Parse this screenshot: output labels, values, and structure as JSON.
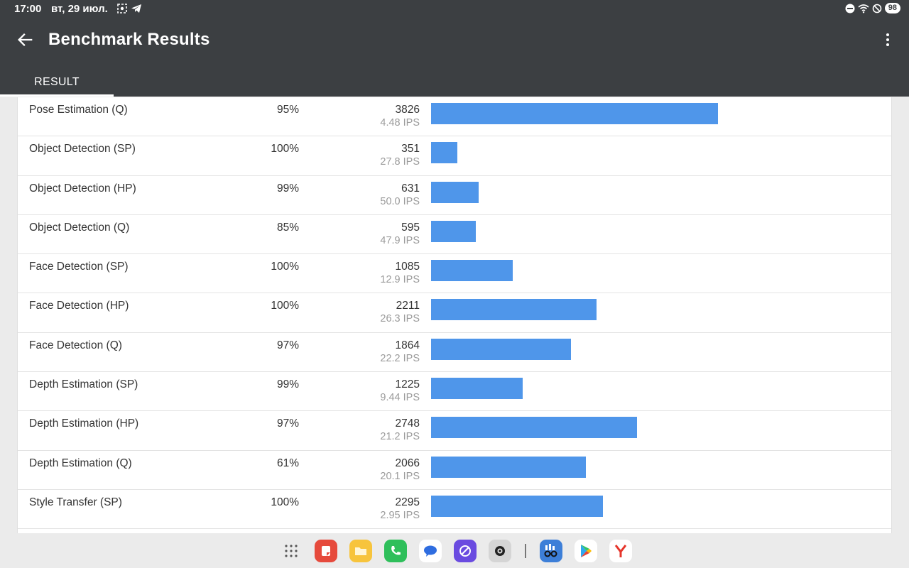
{
  "status": {
    "time": "17:00",
    "date": "вт, 29 июл.",
    "battery": "98"
  },
  "app_bar": {
    "title": "Benchmark Results",
    "tab": "RESULT"
  },
  "results": [
    {
      "name": "Pose Estimation (Q)",
      "accuracy": "95%",
      "score": 3826,
      "ips": "4.48 IPS"
    },
    {
      "name": "Object Detection (SP)",
      "accuracy": "100%",
      "score": 351,
      "ips": "27.8 IPS"
    },
    {
      "name": "Object Detection (HP)",
      "accuracy": "99%",
      "score": 631,
      "ips": "50.0 IPS"
    },
    {
      "name": "Object Detection (Q)",
      "accuracy": "85%",
      "score": 595,
      "ips": "47.9 IPS"
    },
    {
      "name": "Face Detection (SP)",
      "accuracy": "100%",
      "score": 1085,
      "ips": "12.9 IPS"
    },
    {
      "name": "Face Detection (HP)",
      "accuracy": "100%",
      "score": 2211,
      "ips": "26.3 IPS"
    },
    {
      "name": "Face Detection (Q)",
      "accuracy": "97%",
      "score": 1864,
      "ips": "22.2 IPS"
    },
    {
      "name": "Depth Estimation (SP)",
      "accuracy": "99%",
      "score": 1225,
      "ips": "9.44 IPS"
    },
    {
      "name": "Depth Estimation (HP)",
      "accuracy": "97%",
      "score": 2748,
      "ips": "21.2 IPS"
    },
    {
      "name": "Depth Estimation (Q)",
      "accuracy": "61%",
      "score": 2066,
      "ips": "20.1 IPS"
    },
    {
      "name": "Style Transfer (SP)",
      "accuracy": "100%",
      "score": 2295,
      "ips": "2.95 IPS"
    }
  ],
  "colors": {
    "bar": "#4f96ea",
    "app_bar": "#3c3f42"
  },
  "dock": [
    {
      "icon": "app-grid-icon",
      "color": "transparent"
    },
    {
      "icon": "notes-app-icon",
      "color": "#e64a3c"
    },
    {
      "icon": "files-app-icon",
      "color": "#f7c43c"
    },
    {
      "icon": "phone-app-icon",
      "color": "#2fbf5b"
    },
    {
      "icon": "messages-app-icon",
      "color": "#ffffff"
    },
    {
      "icon": "browser-app-icon",
      "color": "#6a4be0"
    },
    {
      "icon": "camera-app-icon",
      "color": "#d5d5d5"
    },
    {
      "icon": "geekbench-app-icon",
      "color": "#3d7fd8"
    },
    {
      "icon": "play-store-icon",
      "color": "#ffffff"
    },
    {
      "icon": "yandex-browser-icon",
      "color": "#ffffff"
    }
  ]
}
